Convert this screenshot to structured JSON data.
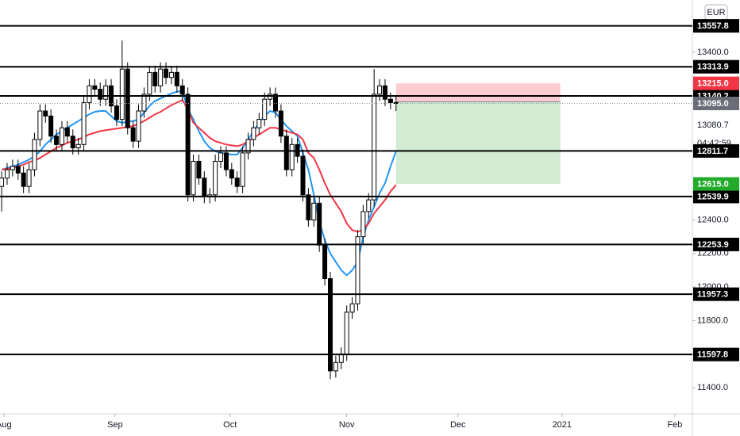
{
  "chart_data": {
    "type": "candlestick",
    "currency": "EUR",
    "xlim": [
      -0.3,
      126.1
    ],
    "ylim": [
      11244,
      13712
    ],
    "xticks": [
      {
        "value": 0.4,
        "label": "Aug"
      },
      {
        "value": 20.7,
        "label": "Sep"
      },
      {
        "value": 41.7,
        "label": "Oct"
      },
      {
        "value": 63.0,
        "label": "Nov"
      },
      {
        "value": 83.3,
        "label": "Dec"
      },
      {
        "value": 102.3,
        "label": "2021"
      },
      {
        "value": 122.9,
        "label": "Feb"
      }
    ],
    "yticks": [
      {
        "value": 11400,
        "label": "11400.0"
      },
      {
        "value": 11800,
        "label": "11800.0"
      },
      {
        "value": 12000,
        "label": "12000.0"
      },
      {
        "value": 12200,
        "label": "12200.0"
      },
      {
        "value": 12400,
        "label": "12400.0"
      },
      {
        "value": 13400,
        "label": "13400.0"
      }
    ],
    "open": [
      12600,
      12650,
      12700,
      12720,
      12680,
      12600,
      12700,
      12880,
      13050,
      13020,
      12900,
      12850,
      12950,
      12900,
      12830,
      12850,
      13100,
      13200,
      13180,
      13120,
      13200,
      13080,
      13000,
      13300,
      12950,
      12870,
      13050,
      13150,
      13280,
      13200,
      13300,
      13250,
      13280,
      13200,
      13150,
      12550,
      12750,
      12650,
      12540,
      12550,
      12750,
      12800,
      12700,
      12650,
      12600,
      12800,
      12880,
      12950,
      13000,
      13120,
      13150,
      13050,
      12900,
      12700,
      12850,
      12780,
      12550,
      12400,
      12500,
      12250,
      12050,
      11500,
      11550,
      11600,
      11850,
      11900,
      12300,
      12450,
      12520,
      13150,
      13200,
      13120,
      13100
    ],
    "high": [
      12690,
      12740,
      12760,
      12760,
      12720,
      12740,
      12920,
      13090,
      13090,
      13060,
      12940,
      12990,
      12990,
      12940,
      12890,
      13140,
      13240,
      13240,
      13220,
      13240,
      13240,
      13120,
      13470,
      13340,
      12990,
      13090,
      13190,
      13320,
      13320,
      13340,
      13340,
      13320,
      13320,
      13240,
      13190,
      12790,
      12790,
      12690,
      12590,
      12790,
      12840,
      12840,
      12740,
      12690,
      12840,
      12920,
      12990,
      13040,
      13160,
      13190,
      13190,
      13090,
      12940,
      12890,
      12890,
      12820,
      12590,
      12540,
      12540,
      12290,
      12090,
      11590,
      11640,
      11890,
      11940,
      12340,
      12490,
      12560,
      13300,
      13240,
      13240,
      13160,
      13140
    ],
    "low": [
      12450,
      12610,
      12660,
      12640,
      12560,
      12560,
      12660,
      12840,
      12980,
      12860,
      12810,
      12810,
      12860,
      12790,
      12790,
      12810,
      13060,
      13140,
      13080,
      13080,
      13040,
      12960,
      12960,
      12910,
      12830,
      12830,
      13010,
      13110,
      13160,
      13160,
      13210,
      13210,
      13160,
      13110,
      12510,
      12510,
      12610,
      12500,
      12500,
      12510,
      12710,
      12660,
      12610,
      12560,
      12560,
      12760,
      12840,
      12910,
      12960,
      13080,
      13010,
      12860,
      12660,
      12660,
      12740,
      12510,
      12360,
      12360,
      12210,
      12010,
      11450,
      11460,
      11510,
      11560,
      11810,
      11860,
      12260,
      12410,
      12480,
      13110,
      13080,
      13060,
      13050
    ],
    "close": [
      12650,
      12700,
      12720,
      12680,
      12600,
      12700,
      12880,
      13050,
      13020,
      12900,
      12850,
      12950,
      12900,
      12830,
      12850,
      13100,
      13200,
      13180,
      13120,
      13200,
      13080,
      13000,
      13300,
      12950,
      12870,
      13050,
      13150,
      13280,
      13200,
      13300,
      13250,
      13280,
      13200,
      13150,
      12550,
      12750,
      12650,
      12540,
      12550,
      12750,
      12800,
      12700,
      12650,
      12600,
      12800,
      12880,
      12950,
      13000,
      13120,
      13150,
      13050,
      12900,
      12700,
      12850,
      12780,
      12550,
      12400,
      12500,
      12250,
      12050,
      11500,
      11550,
      11600,
      11850,
      11900,
      12300,
      12450,
      12520,
      13150,
      13200,
      13120,
      13100,
      13095
    ],
    "series": [
      {
        "color": "#2196f3",
        "values": [
          12700,
          12710,
          12720,
          12730,
          12745,
          12760,
          12780,
          12810,
          12850,
          12880,
          12910,
          12930,
          12950,
          12970,
          12990,
          13010,
          13030,
          13045,
          13050,
          13050,
          13020,
          12990,
          12980,
          12985,
          12990,
          13000,
          13040,
          13080,
          13110,
          13125,
          13140,
          13155,
          13165,
          13170,
          13060,
          13000,
          12930,
          12870,
          12830,
          12810,
          12800,
          12795,
          12790,
          12790,
          12830,
          12880,
          12930,
          12980,
          13020,
          13050,
          13040,
          13000,
          12960,
          12930,
          12900,
          12800,
          12700,
          12550,
          12390,
          12280,
          12200,
          12150,
          12100,
          12070,
          12100,
          12150,
          12300,
          12400,
          12480,
          12560,
          12620,
          12720,
          12810
        ]
      },
      {
        "color": "#f23645",
        "values": [
          12700,
          12705,
          12710,
          12720,
          12730,
          12745,
          12755,
          12770,
          12790,
          12810,
          12830,
          12845,
          12860,
          12870,
          12880,
          12895,
          12910,
          12920,
          12930,
          12935,
          12940,
          12945,
          12950,
          12955,
          12960,
          12975,
          12990,
          13010,
          13030,
          13045,
          13065,
          13085,
          13100,
          13115,
          13060,
          12980,
          12950,
          12920,
          12890,
          12870,
          12860,
          12850,
          12845,
          12840,
          12850,
          12870,
          12890,
          12910,
          12930,
          12950,
          12950,
          12940,
          12930,
          12920,
          12910,
          12880,
          12800,
          12770,
          12700,
          12620,
          12550,
          12500,
          12450,
          12380,
          12340,
          12330,
          12340,
          12380,
          12440,
          12480,
          12520,
          12570,
          12610
        ]
      }
    ],
    "levels": [
      {
        "value": 13557.8,
        "label": "13557.8"
      },
      {
        "value": 13313.9,
        "label": "13313.9"
      },
      {
        "value": 13140.2,
        "label": "13140.2"
      },
      {
        "value": 12811.7,
        "label": "12811.7"
      },
      {
        "value": 12539.9,
        "label": "12539.9"
      },
      {
        "value": 12253.9,
        "label": "12253.9"
      },
      {
        "value": 11957.3,
        "label": "11957.3"
      },
      {
        "value": 11597.8,
        "label": "11597.8"
      }
    ],
    "position": {
      "start": 72,
      "end": 102,
      "entry": 13105,
      "stop": {
        "value": 13215,
        "label": "13215.0"
      },
      "target": {
        "value": 12615,
        "label": "12615.0"
      }
    },
    "last_price": {
      "value": 13095,
      "label": "13095.0"
    },
    "scale_texts": [
      "13080.7",
      "04:42:59"
    ]
  }
}
